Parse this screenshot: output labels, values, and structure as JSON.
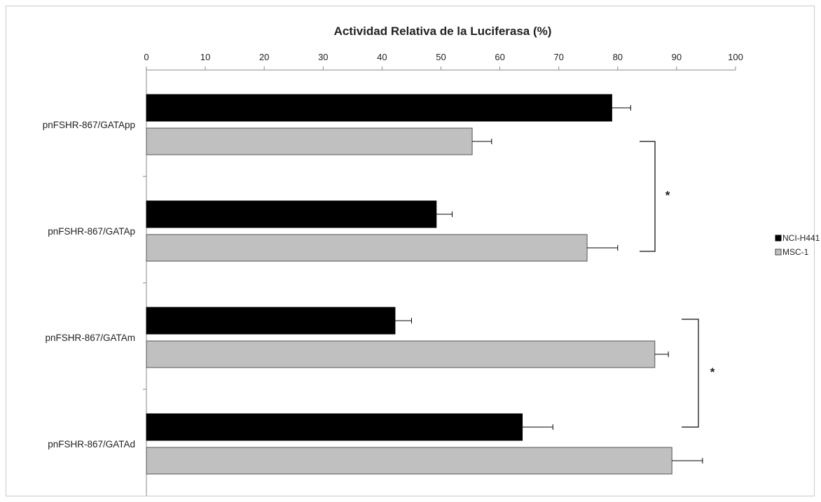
{
  "chart_data": {
    "type": "bar",
    "orientation": "horizontal",
    "title": "Actividad Relativa de la Luciferasa (%)",
    "xlabel": "Actividad Relativa de la Luciferasa (%)",
    "ylabel": "",
    "xlim": [
      0,
      100
    ],
    "x_ticks": [
      "0",
      "10",
      "20",
      "30",
      "40",
      "50",
      "60",
      "70",
      "80",
      "90",
      "100"
    ],
    "x_axis_position": "top",
    "grid": false,
    "legend_position": "right",
    "categories": [
      "pnFSHR-867/GATApp",
      "pnFSHR-867/GATAp",
      "pnFSHR-867/GATAm",
      "pnFSHR-867/GATAd"
    ],
    "series": [
      {
        "name": "NCI-H441",
        "color": "#000000",
        "values": [
          79,
          49.2,
          42.2,
          63.8
        ],
        "errors": [
          3.2,
          2.7,
          2.8,
          5.2
        ]
      },
      {
        "name": "MSC-1",
        "color": "#c0c0c0",
        "values": [
          55.3,
          74.8,
          86.3,
          89.2
        ],
        "errors": [
          3.3,
          5.2,
          2.3,
          5.2
        ]
      }
    ],
    "annotations": [
      {
        "text": "*",
        "between_categories": [
          "pnFSHR-867/GATApp",
          "pnFSHR-867/GATAp"
        ],
        "type": "significance-bracket"
      },
      {
        "text": "*",
        "between_categories": [
          "pnFSHR-867/GATAm",
          "pnFSHR-867/GATAd"
        ],
        "type": "significance-bracket"
      }
    ]
  }
}
